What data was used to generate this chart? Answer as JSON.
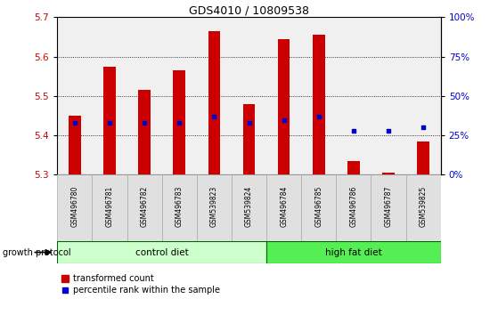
{
  "title": "GDS4010 / 10809538",
  "samples": [
    "GSM496780",
    "GSM496781",
    "GSM496782",
    "GSM496783",
    "GSM539823",
    "GSM539824",
    "GSM496784",
    "GSM496785",
    "GSM496786",
    "GSM496787",
    "GSM539825"
  ],
  "red_values": [
    5.45,
    5.575,
    5.515,
    5.565,
    5.665,
    5.48,
    5.645,
    5.655,
    5.335,
    5.305,
    5.385
  ],
  "blue_percentiles": [
    33,
    33,
    33,
    33,
    37,
    33,
    35,
    37,
    28,
    28,
    30
  ],
  "ylim_left": [
    5.3,
    5.7
  ],
  "ylim_right": [
    0,
    100
  ],
  "yticks_left": [
    5.3,
    5.4,
    5.5,
    5.6,
    5.7
  ],
  "yticks_right": [
    0,
    25,
    50,
    75,
    100
  ],
  "ytick_labels_right": [
    "0%",
    "25%",
    "50%",
    "75%",
    "100%"
  ],
  "baseline": 5.3,
  "bar_color": "#cc0000",
  "blue_color": "#0000cc",
  "control_diet_samples": 6,
  "control_diet_label": "control diet",
  "high_fat_diet_label": "high fat diet",
  "growth_protocol_label": "growth protocol",
  "legend_red_label": "transformed count",
  "legend_blue_label": "percentile rank within the sample",
  "control_bg": "#ccffcc",
  "high_fat_bg": "#55ee55",
  "plot_bg": "#f0f0f0",
  "bar_width": 0.35
}
